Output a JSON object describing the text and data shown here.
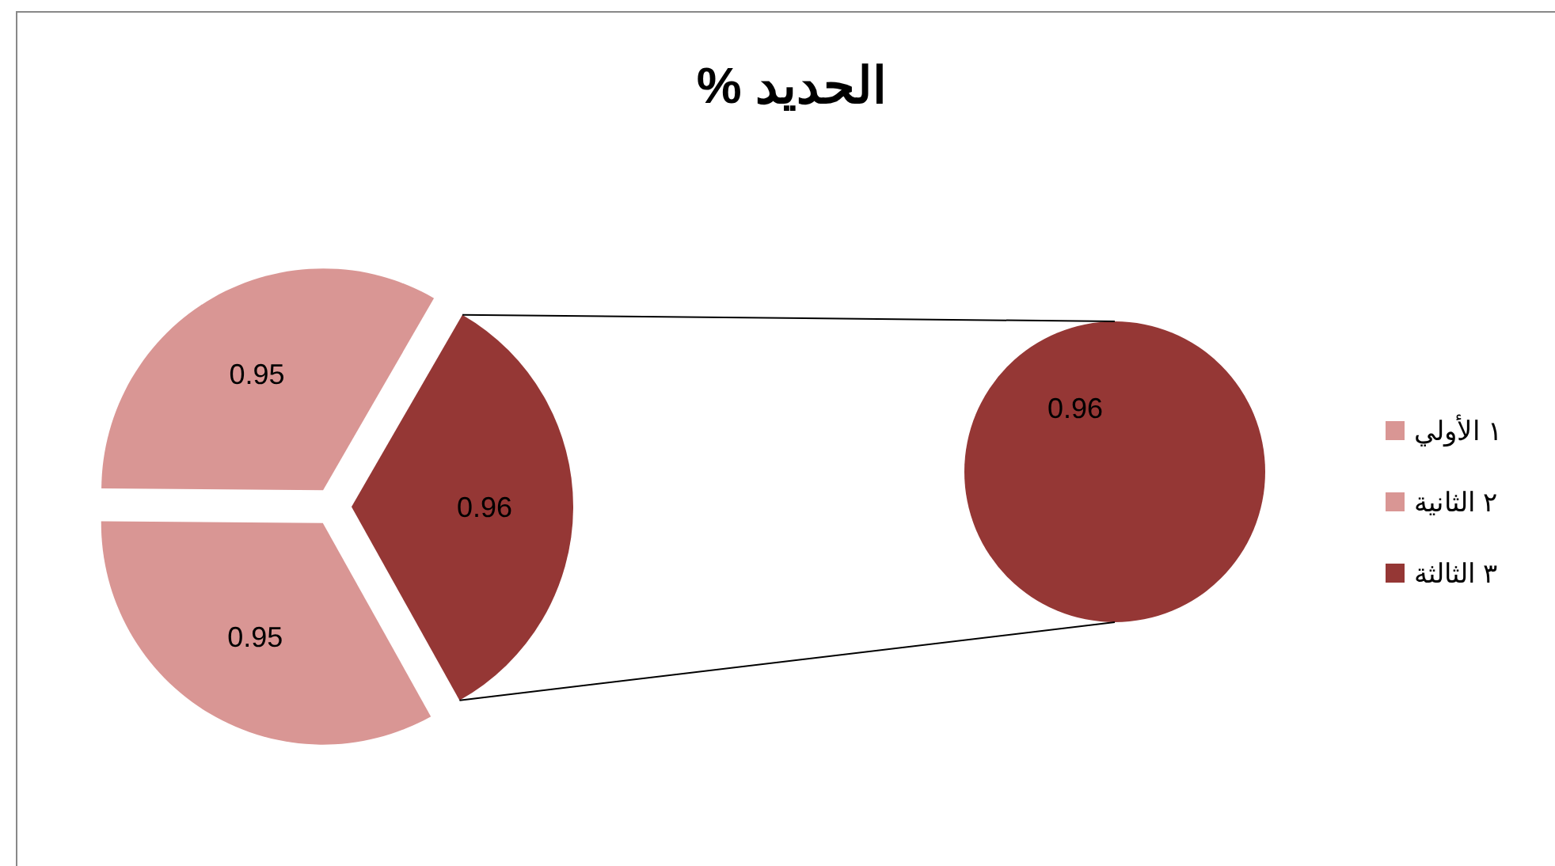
{
  "chart_data": [
    {
      "type": "pie",
      "title": "الحديد %",
      "categories": [
        "١ الأولي",
        "٢ الثانية",
        "٣ الثالثة"
      ],
      "values": [
        0.95,
        0.95,
        0.96
      ],
      "colors": [
        "#d99694",
        "#d99694",
        "#953735"
      ],
      "data_labels": true,
      "legend": "right"
    },
    {
      "type": "pie",
      "categories": [
        null
      ],
      "values": [
        0.96
      ],
      "colors": [
        "#953735"
      ],
      "data_labels": true
    }
  ]
}
